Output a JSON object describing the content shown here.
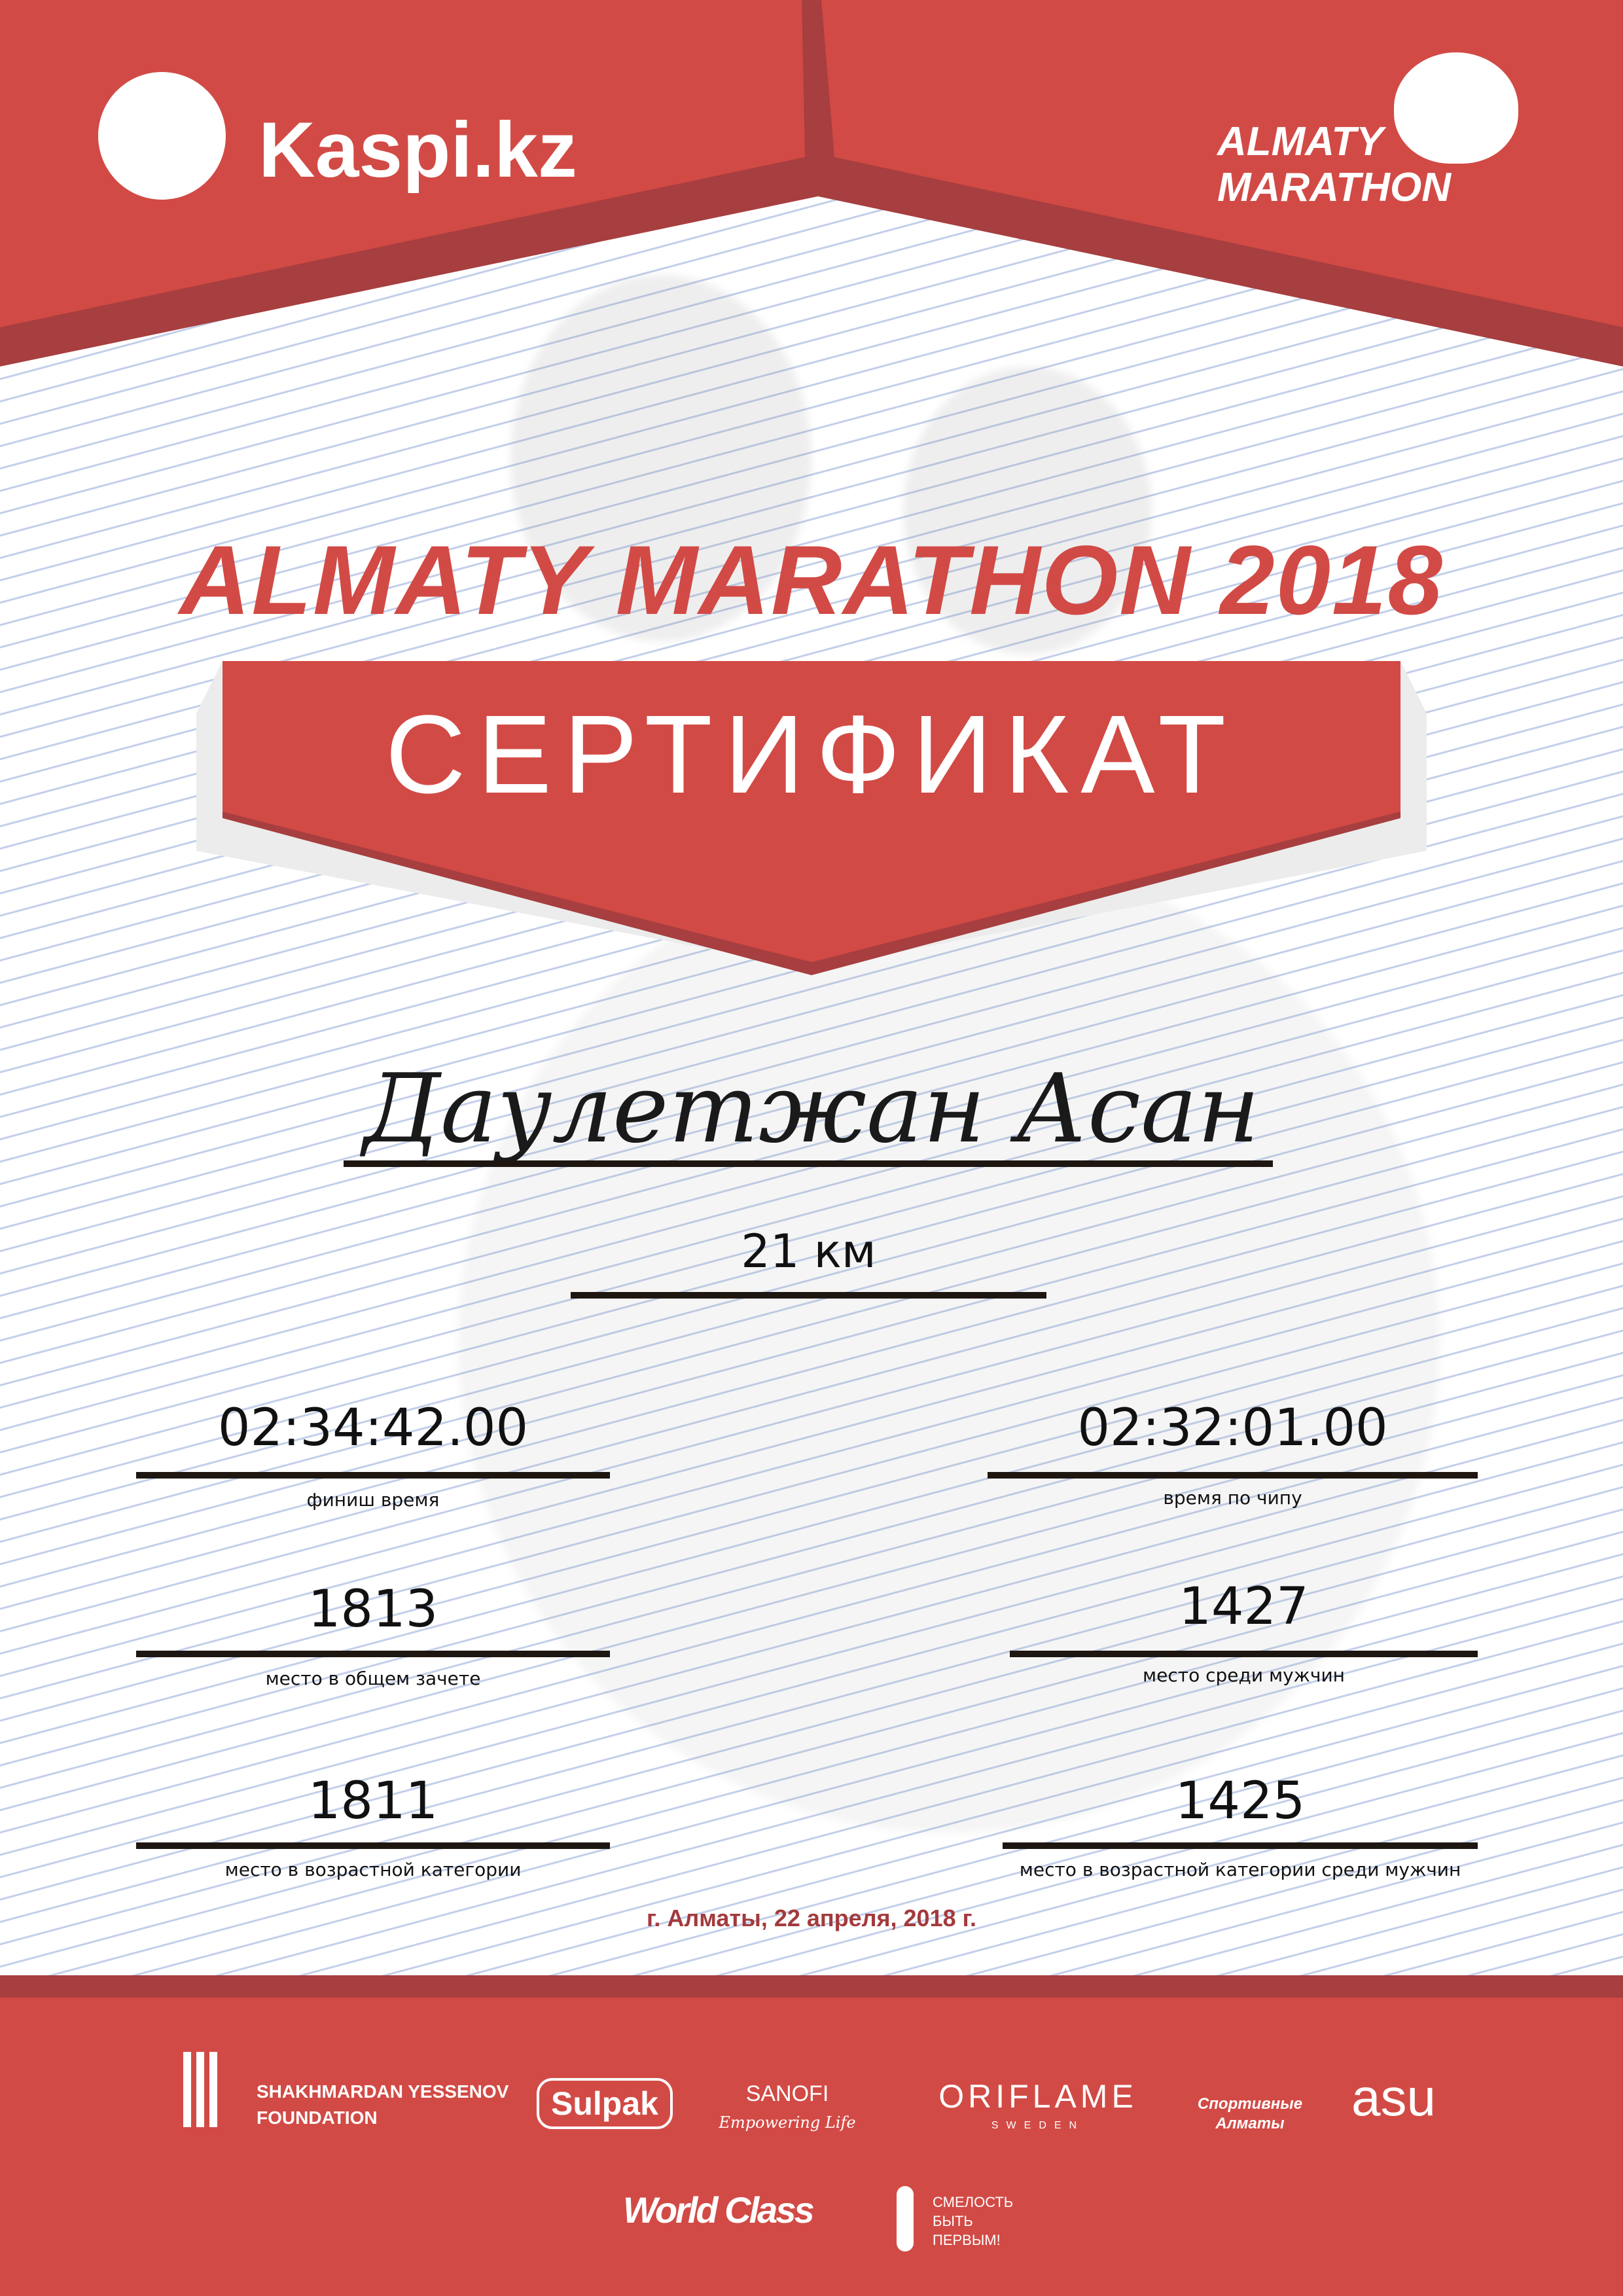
{
  "colors": {
    "brand_red": "#d24a45",
    "dark_red": "#a73e3f",
    "date_red": "#a33a3d",
    "lines": "#c3cfea"
  },
  "header": {
    "kaspi_logo": "Kaspi.kz",
    "marathon_logo_line1": "ALMATY",
    "marathon_logo_line2": "MARATHON"
  },
  "title": "ALMATY MARATHON 2018",
  "certificate_label": "СЕРТИФИКАТ",
  "participant_name": "Даулетжан Асан",
  "distance": "21 км",
  "results": {
    "finish_time": {
      "value": "02:34:42.00",
      "label": "финиш время"
    },
    "chip_time": {
      "value": "02:32:01.00",
      "label": "время по чипу"
    },
    "overall_place": {
      "value": "1813",
      "label": "место в общем зачете"
    },
    "men_place": {
      "value": "1427",
      "label": "место среди мужчин"
    },
    "age_place": {
      "value": "1811",
      "label": "место в возрастной категории"
    },
    "age_men_place": {
      "value": "1425",
      "label": "место в возрастной категории среди мужчин"
    }
  },
  "date": "г. Алматы, 22 апреля, 2018 г.",
  "sponsors": {
    "yessenov_1": "SHAKHMARDAN YESSENOV",
    "yessenov_2": "FOUNDATION",
    "sulpak": "Sulpak",
    "sanofi": "SANOFI",
    "sanofi_tag": "Empowering Life",
    "oriflame": "ORIFLAME",
    "oriflame_sub": "SWEDEN",
    "sport_almaty": "Спортивные Алматы",
    "asu": "asu",
    "worldclass": "World Class",
    "smelost_1": "СМЕЛОСТЬ",
    "smelost_2": "БЫТЬ",
    "smelost_3": "ПЕРВЫМ!"
  }
}
